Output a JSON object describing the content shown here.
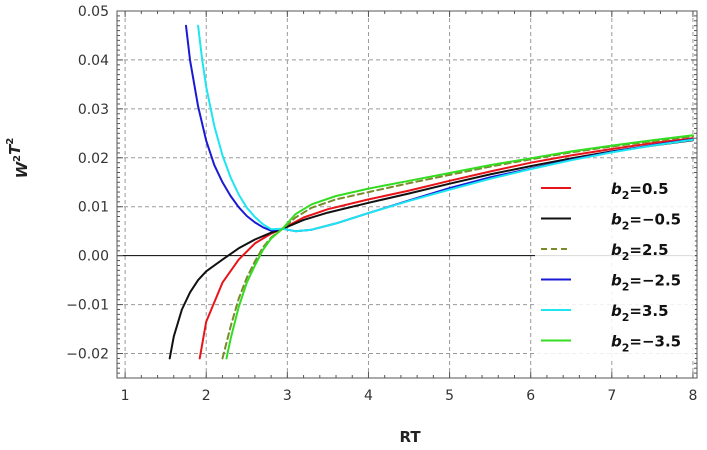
{
  "chart_data": {
    "type": "line",
    "title": "",
    "xlabel": "RT",
    "ylabel": "W²T²",
    "ylabel_parts": [
      "W",
      "2",
      "T",
      "2"
    ],
    "xlim": [
      0.9,
      8.05
    ],
    "ylim": [
      -0.025,
      0.05
    ],
    "xticks": [
      1,
      2,
      3,
      4,
      5,
      6,
      7,
      8
    ],
    "xtick_labels": [
      "1",
      "2",
      "3",
      "4",
      "5",
      "6",
      "7",
      "8"
    ],
    "yticks": [
      -0.02,
      -0.01,
      0.0,
      0.01,
      0.02,
      0.03,
      0.04,
      0.05
    ],
    "ytick_labels": [
      "−0.02",
      "−0.01",
      "0.00",
      "0.01",
      "0.02",
      "0.03",
      "0.04",
      "0.05"
    ],
    "grid": true,
    "legend_position": "right",
    "series": [
      {
        "name": "b2=0.5",
        "label": [
          "b",
          "2",
          "=0.5"
        ],
        "color": "#e8141a",
        "dashed": false,
        "x": [
          1.92,
          2.0,
          2.2,
          2.4,
          2.6,
          2.8,
          2.94,
          3.2,
          3.5,
          4.0,
          4.5,
          5.0,
          5.5,
          6.0,
          6.5,
          7.0,
          7.5,
          8.0
        ],
        "y": [
          -0.021,
          -0.0135,
          -0.0055,
          -0.0008,
          0.0025,
          0.0045,
          0.0055,
          0.0078,
          0.0095,
          0.0115,
          0.0133,
          0.0153,
          0.0172,
          0.019,
          0.0205,
          0.0218,
          0.023,
          0.024
        ]
      },
      {
        "name": "b2=−0.5",
        "label": [
          "b",
          "2",
          "=−0.5"
        ],
        "color": "#111111",
        "dashed": false,
        "x": [
          1.55,
          1.6,
          1.7,
          1.8,
          1.9,
          2.0,
          2.2,
          2.4,
          2.6,
          2.8,
          2.94,
          3.2,
          3.5,
          4.0,
          4.5,
          5.0,
          5.5,
          6.0,
          6.5,
          7.0,
          7.5,
          8.0
        ],
        "y": [
          -0.021,
          -0.0165,
          -0.011,
          -0.0075,
          -0.005,
          -0.0032,
          -0.0008,
          0.0015,
          0.0033,
          0.0047,
          0.0055,
          0.0073,
          0.0088,
          0.0108,
          0.0127,
          0.0147,
          0.0166,
          0.0183,
          0.0199,
          0.0213,
          0.0225,
          0.0236
        ]
      },
      {
        "name": "b2=2.5",
        "label": [
          "b",
          "2",
          "=2.5"
        ],
        "color": "#7a8c2a",
        "dashed": true,
        "x": [
          2.2,
          2.3,
          2.4,
          2.5,
          2.6,
          2.7,
          2.8,
          2.94,
          3.1,
          3.3,
          3.6,
          4.0,
          4.5,
          5.0,
          5.5,
          6.0,
          6.5,
          7.0,
          7.5,
          8.0
        ],
        "y": [
          -0.021,
          -0.0145,
          -0.0088,
          -0.0045,
          -0.0012,
          0.0017,
          0.0037,
          0.0055,
          0.0078,
          0.0098,
          0.0115,
          0.013,
          0.0148,
          0.0165,
          0.0182,
          0.0197,
          0.0211,
          0.0223,
          0.0234,
          0.0244
        ]
      },
      {
        "name": "b2=−2.5",
        "label": [
          "b",
          "2",
          "=−2.5"
        ],
        "color": "#1a1ad6",
        "dashed": false,
        "x": [
          1.75,
          1.8,
          1.9,
          2.0,
          2.1,
          2.2,
          2.3,
          2.4,
          2.5,
          2.6,
          2.7,
          2.8,
          2.94,
          3.1,
          3.3,
          3.6,
          4.0,
          4.5,
          5.0,
          5.5,
          6.0,
          6.5,
          7.0,
          7.5,
          8.0
        ],
        "y": [
          0.047,
          0.04,
          0.0305,
          0.0235,
          0.0185,
          0.015,
          0.0122,
          0.0099,
          0.0081,
          0.0068,
          0.0058,
          0.0051,
          0.0055,
          0.005,
          0.0053,
          0.0066,
          0.0087,
          0.0113,
          0.0138,
          0.016,
          0.0178,
          0.0196,
          0.0212,
          0.0226,
          0.0238
        ]
      },
      {
        "name": "b2=3.5",
        "label": [
          "b",
          "2",
          "=3.5"
        ],
        "color": "#1de6f0",
        "dashed": false,
        "x": [
          1.9,
          1.95,
          2.0,
          2.1,
          2.2,
          2.3,
          2.4,
          2.5,
          2.6,
          2.7,
          2.8,
          2.94,
          3.1,
          3.3,
          3.6,
          4.0,
          4.5,
          5.0,
          5.5,
          6.0,
          6.5,
          7.0,
          7.5,
          8.0
        ],
        "y": [
          0.047,
          0.04,
          0.0345,
          0.0265,
          0.0205,
          0.016,
          0.0125,
          0.0098,
          0.0079,
          0.0064,
          0.0054,
          0.0055,
          0.005,
          0.0053,
          0.0066,
          0.0087,
          0.0112,
          0.0135,
          0.0157,
          0.0177,
          0.0195,
          0.0211,
          0.0225,
          0.0237
        ]
      },
      {
        "name": "b2=−3.5",
        "label": [
          "b",
          "2",
          "=−3.5"
        ],
        "color": "#33dd22",
        "dashed": false,
        "x": [
          2.25,
          2.3,
          2.4,
          2.5,
          2.6,
          2.7,
          2.8,
          2.94,
          3.1,
          3.3,
          3.6,
          4.0,
          4.5,
          5.0,
          5.5,
          6.0,
          6.5,
          7.0,
          7.5,
          8.0
        ],
        "y": [
          -0.021,
          -0.017,
          -0.0105,
          -0.0055,
          -0.002,
          0.0012,
          0.0035,
          0.0055,
          0.0085,
          0.0105,
          0.0122,
          0.0137,
          0.0153,
          0.0169,
          0.0185,
          0.0199,
          0.0213,
          0.0225,
          0.0236,
          0.0246
        ]
      }
    ]
  }
}
